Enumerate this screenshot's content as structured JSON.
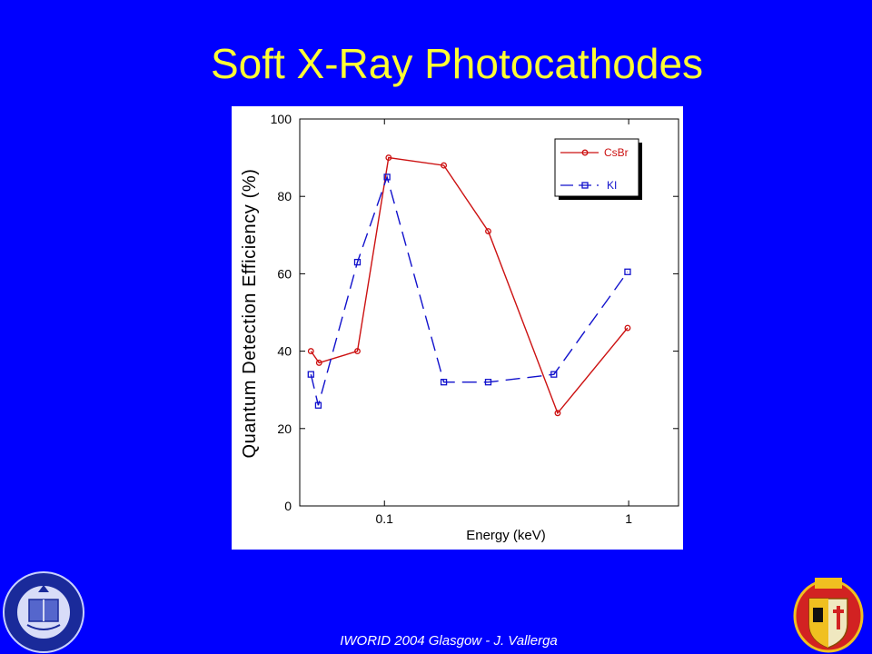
{
  "slide": {
    "title": "Soft X-Ray Photocathodes",
    "footer": "IWORID 2004 Glasgow - J. Vallerga"
  },
  "colors": {
    "background": "#0000ff",
    "title": "#ffff33",
    "csbr": "#cc1111",
    "ki": "#1111cc"
  },
  "chart_data": {
    "type": "line",
    "xlabel": "Energy (keV)",
    "ylabel": "Quantum Detection Efficiency (%)",
    "xscale": "log",
    "xlim": [
      0.045,
      1.6
    ],
    "ylim": [
      0,
      100
    ],
    "x_ticks": [
      0.1,
      1
    ],
    "x_tick_labels": [
      "0.1",
      "1"
    ],
    "y_ticks": [
      0,
      20,
      40,
      60,
      80,
      100
    ],
    "y_tick_labels": [
      "0",
      "20",
      "40",
      "60",
      "80",
      "100"
    ],
    "grid": false,
    "legend": "top-right",
    "series": [
      {
        "name": "CsBr",
        "line": "solid",
        "marker": "circle",
        "x": [
          0.05,
          0.054,
          0.0775,
          0.104,
          0.175,
          0.266,
          0.512,
          0.99
        ],
        "y": [
          40,
          37,
          40,
          90,
          88,
          71,
          24,
          46
        ]
      },
      {
        "name": "KI",
        "line": "dashed",
        "marker": "square",
        "x": [
          0.05,
          0.0536,
          0.0775,
          0.1025,
          0.175,
          0.266,
          0.494,
          0.99
        ],
        "y": [
          34,
          26,
          63,
          85,
          32,
          32,
          34,
          60.5
        ]
      }
    ]
  },
  "logos": {
    "left": "university-seal-icon",
    "right": "coat-of-arms-seal-icon"
  }
}
